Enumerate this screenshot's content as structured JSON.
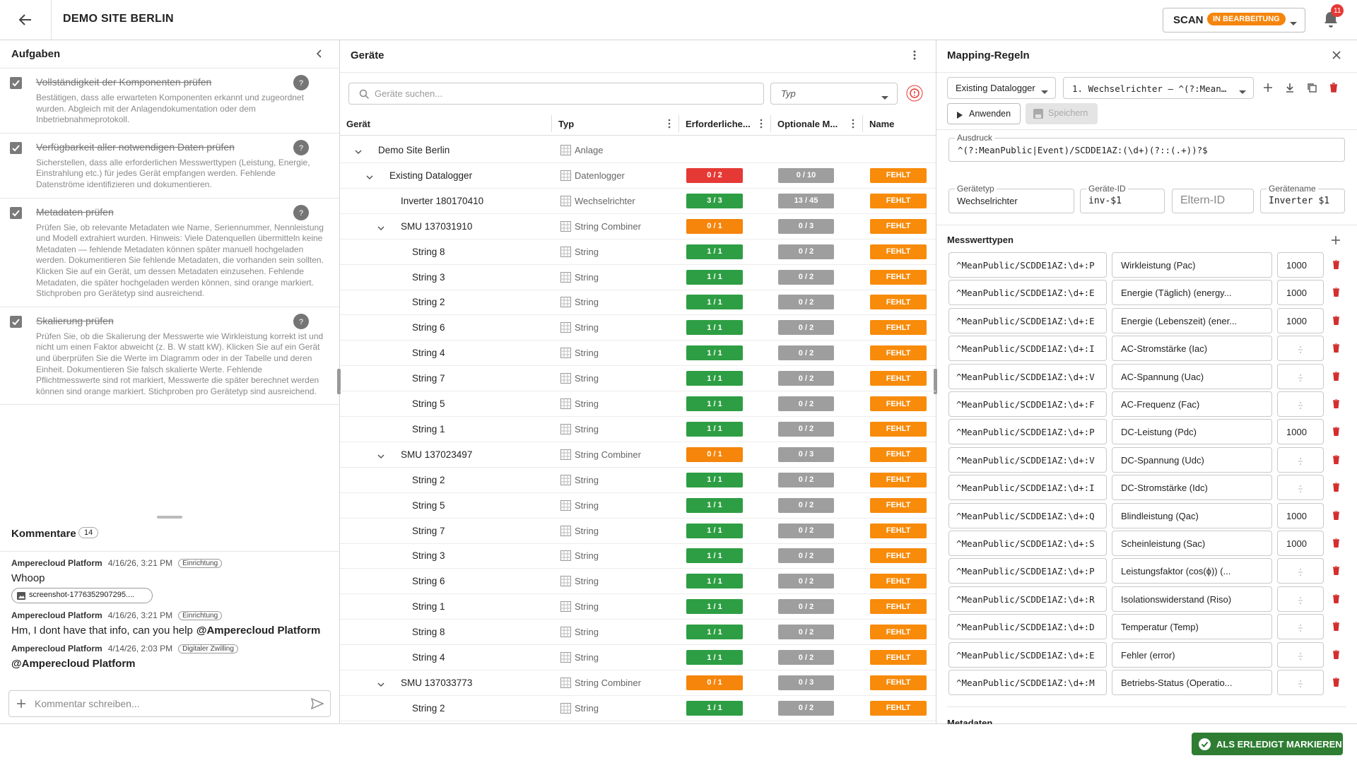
{
  "header": {
    "title": "DEMO SITE BERLIN",
    "scan_label": "SCAN",
    "status": "IN BEARBEITUNG",
    "notifications": 11
  },
  "tasks": {
    "title": "Aufgaben",
    "items": [
      {
        "title": "Vollständigkeit der Komponenten prüfen",
        "description": "Bestätigen, dass alle erwarteten Komponenten erkannt und zugeordnet wurden. Abgleich mit der Anlagendokumentation oder dem Inbetriebnahmeprotokoll."
      },
      {
        "title": "Verfügbarkeit aller notwendigen Daten prüfen",
        "description": "Sicherstellen, dass alle erforderlichen Messwerttypen (Leistung, Energie, Einstrahlung etc.) für jedes Gerät empfangen werden. Fehlende Datenströme identifizieren und dokumentieren."
      },
      {
        "title": "Metadaten prüfen",
        "description": "Prüfen Sie, ob relevante Metadaten wie Name, Seriennummer, Nennleistung und Modell extrahiert wurden. Hinweis: Viele Datenquellen übermitteln keine Metadaten — fehlende Metadaten können später manuell hochgeladen werden. Dokumentieren Sie fehlende Metadaten, die vorhanden sein sollten. Klicken Sie auf ein Gerät, um dessen Metadaten einzusehen. Fehlende Metadaten, die später hochgeladen werden können, sind orange markiert. Stichproben pro Gerätetyp sind ausreichend."
      },
      {
        "title": "Skalierung prüfen",
        "description": "Prüfen Sie, ob die Skalierung der Messwerte wie Wirkleistung korrekt ist und nicht um einen Faktor abweicht (z. B. W statt kW). Klicken Sie auf ein Gerät und überprüfen Sie die Werte im Diagramm oder in der Tabelle und deren Einheit. Dokumentieren Sie falsch skalierte Werte. Fehlende Pflichtmesswerte sind rot markiert, Messwerte die später berechnet werden können sind orange markiert. Stichproben pro Gerätetyp sind ausreichend."
      }
    ]
  },
  "comments": {
    "title": "Kommentare",
    "count": 14,
    "placeholder": "Kommentar schreiben...",
    "items": [
      {
        "author": "Amperecloud Platform",
        "date": "4/16/26, 3:21 PM",
        "tag": "Einrichtung",
        "text": "Whoop",
        "attachment": "screenshot-1776352907295...."
      },
      {
        "author": "Amperecloud Platform",
        "date": "4/16/26, 3:21 PM",
        "tag": "Einrichtung",
        "text": "Hm, I dont have that info, can you help",
        "mention": "@Amperecloud Platform"
      },
      {
        "author": "Amperecloud Platform",
        "date": "4/14/26, 2:03 PM",
        "tag": "Digitaler Zwilling",
        "mention": "@Amperecloud Platform"
      }
    ]
  },
  "devices": {
    "title": "Geräte",
    "search_placeholder": "Geräte suchen...",
    "type_placeholder": "Typ",
    "columns": [
      "Gerät",
      "Typ",
      "Erforderliche...",
      "Optionale M...",
      "Name"
    ],
    "rows": [
      {
        "name": "Demo Site Berlin",
        "level": 0,
        "expanded": true,
        "type": "Anlage"
      },
      {
        "name": "Existing Datalogger",
        "level": 1,
        "expanded": true,
        "type": "Datenlogger",
        "required": "0 / 2",
        "required_color": "#e53935",
        "optional": "0 / 10",
        "status": "FEHLT"
      },
      {
        "name": "Inverter 180170410",
        "level": 2,
        "type": "Wechselrichter",
        "required": "3 / 3",
        "required_color": "#2e9e44",
        "optional": "13 / 45",
        "status": "FEHLT"
      },
      {
        "name": "SMU 137031910",
        "level": 2,
        "expanded": true,
        "type": "String Combiner",
        "required": "0 / 1",
        "required_color": "#f5850b",
        "optional": "0 / 3",
        "status": "FEHLT"
      },
      {
        "name": "String 8",
        "level": 3,
        "type": "String",
        "required": "1 / 1",
        "required_color": "#2e9e44",
        "optional": "0 / 2",
        "status": "FEHLT"
      },
      {
        "name": "String 3",
        "level": 3,
        "type": "String",
        "required": "1 / 1",
        "required_color": "#2e9e44",
        "optional": "0 / 2",
        "status": "FEHLT"
      },
      {
        "name": "String 2",
        "level": 3,
        "type": "String",
        "required": "1 / 1",
        "required_color": "#2e9e44",
        "optional": "0 / 2",
        "status": "FEHLT"
      },
      {
        "name": "String 6",
        "level": 3,
        "type": "String",
        "required": "1 / 1",
        "required_color": "#2e9e44",
        "optional": "0 / 2",
        "status": "FEHLT"
      },
      {
        "name": "String 4",
        "level": 3,
        "type": "String",
        "required": "1 / 1",
        "required_color": "#2e9e44",
        "optional": "0 / 2",
        "status": "FEHLT"
      },
      {
        "name": "String 7",
        "level": 3,
        "type": "String",
        "required": "1 / 1",
        "required_color": "#2e9e44",
        "optional": "0 / 2",
        "status": "FEHLT"
      },
      {
        "name": "String 5",
        "level": 3,
        "type": "String",
        "required": "1 / 1",
        "required_color": "#2e9e44",
        "optional": "0 / 2",
        "status": "FEHLT"
      },
      {
        "name": "String 1",
        "level": 3,
        "type": "String",
        "required": "1 / 1",
        "required_color": "#2e9e44",
        "optional": "0 / 2",
        "status": "FEHLT"
      },
      {
        "name": "SMU 137023497",
        "level": 2,
        "expanded": true,
        "type": "String Combiner",
        "required": "0 / 1",
        "required_color": "#f5850b",
        "optional": "0 / 3",
        "status": "FEHLT"
      },
      {
        "name": "String 2",
        "level": 3,
        "type": "String",
        "required": "1 / 1",
        "required_color": "#2e9e44",
        "optional": "0 / 2",
        "status": "FEHLT"
      },
      {
        "name": "String 5",
        "level": 3,
        "type": "String",
        "required": "1 / 1",
        "required_color": "#2e9e44",
        "optional": "0 / 2",
        "status": "FEHLT"
      },
      {
        "name": "String 7",
        "level": 3,
        "type": "String",
        "required": "1 / 1",
        "required_color": "#2e9e44",
        "optional": "0 / 2",
        "status": "FEHLT"
      },
      {
        "name": "String 3",
        "level": 3,
        "type": "String",
        "required": "1 / 1",
        "required_color": "#2e9e44",
        "optional": "0 / 2",
        "status": "FEHLT"
      },
      {
        "name": "String 6",
        "level": 3,
        "type": "String",
        "required": "1 / 1",
        "required_color": "#2e9e44",
        "optional": "0 / 2",
        "status": "FEHLT"
      },
      {
        "name": "String 1",
        "level": 3,
        "type": "String",
        "required": "1 / 1",
        "required_color": "#2e9e44",
        "optional": "0 / 2",
        "status": "FEHLT"
      },
      {
        "name": "String 8",
        "level": 3,
        "type": "String",
        "required": "1 / 1",
        "required_color": "#2e9e44",
        "optional": "0 / 2",
        "status": "FEHLT"
      },
      {
        "name": "String 4",
        "level": 3,
        "type": "String",
        "required": "1 / 1",
        "required_color": "#2e9e44",
        "optional": "0 / 2",
        "status": "FEHLT"
      },
      {
        "name": "SMU 137033773",
        "level": 2,
        "expanded": true,
        "type": "String Combiner",
        "required": "0 / 1",
        "required_color": "#f5850b",
        "optional": "0 / 3",
        "status": "FEHLT"
      },
      {
        "name": "String 2",
        "level": 3,
        "type": "String",
        "required": "1 / 1",
        "required_color": "#2e9e44",
        "optional": "0 / 2",
        "status": "FEHLT"
      }
    ]
  },
  "mapping": {
    "title": "Mapping-Regeln",
    "source": "Existing Datalogger",
    "rule": "1. Wechselrichter – ^(?:MeanPu...",
    "apply": "Anwenden",
    "save": "Speichern",
    "expression_label": "Ausdruck",
    "expression": "^(?:MeanPublic|Event)/SCDDE1AZ:(\\d+)(?::(.+))?$",
    "fields": [
      {
        "label": "Gerätetyp",
        "value": "Wechselrichter"
      },
      {
        "label": "Geräte-ID",
        "value": "inv-$1"
      },
      {
        "placeholder": "Eltern-ID"
      },
      {
        "label": "Gerätename",
        "value": "Inverter $1"
      }
    ],
    "measurements_title": "Messwerttypen",
    "measurements": [
      {
        "pattern": "^MeanPublic/SCDDE1AZ:\\d+:P",
        "label": "Wirkleistung (Pac)",
        "factor": 1000
      },
      {
        "pattern": "^MeanPublic/SCDDE1AZ:\\d+:E",
        "label": "Energie (Täglich) (energy...",
        "factor": 1000
      },
      {
        "pattern": "^MeanPublic/SCDDE1AZ:\\d+:E",
        "label": "Energie (Lebenszeit) (ener...",
        "factor": 1000
      },
      {
        "pattern": "^MeanPublic/SCDDE1AZ:\\d+:I",
        "label": "AC-Stromstärke (Iac)"
      },
      {
        "pattern": "^MeanPublic/SCDDE1AZ:\\d+:V",
        "label": "AC-Spannung (Uac)"
      },
      {
        "pattern": "^MeanPublic/SCDDE1AZ:\\d+:F",
        "label": "AC-Frequenz (Fac)"
      },
      {
        "pattern": "^MeanPublic/SCDDE1AZ:\\d+:P",
        "label": "DC-Leistung (Pdc)",
        "factor": 1000
      },
      {
        "pattern": "^MeanPublic/SCDDE1AZ:\\d+:V",
        "label": "DC-Spannung (Udc)"
      },
      {
        "pattern": "^MeanPublic/SCDDE1AZ:\\d+:I",
        "label": "DC-Stromstärke (Idc)"
      },
      {
        "pattern": "^MeanPublic/SCDDE1AZ:\\d+:Q",
        "label": "Blindleistung (Qac)",
        "factor": 1000
      },
      {
        "pattern": "^MeanPublic/SCDDE1AZ:\\d+:S",
        "label": "Scheinleistung (Sac)",
        "factor": 1000
      },
      {
        "pattern": "^MeanPublic/SCDDE1AZ:\\d+:P",
        "label": "Leistungsfaktor (cos(ϕ)) (..."
      },
      {
        "pattern": "^MeanPublic/SCDDE1AZ:\\d+:R",
        "label": "Isolationswiderstand (Riso)"
      },
      {
        "pattern": "^MeanPublic/SCDDE1AZ:\\d+:D",
        "label": "Temperatur (Temp)"
      },
      {
        "pattern": "^MeanPublic/SCDDE1AZ:\\d+:E",
        "label": "Fehler (error)"
      },
      {
        "pattern": "^MeanPublic/SCDDE1AZ:\\d+:M",
        "label": "Betriebs-Status (Operatio..."
      }
    ],
    "metadata_title": "Metadaten"
  },
  "footer": {
    "done": "ALS ERLEDIGT MARKIEREN"
  }
}
